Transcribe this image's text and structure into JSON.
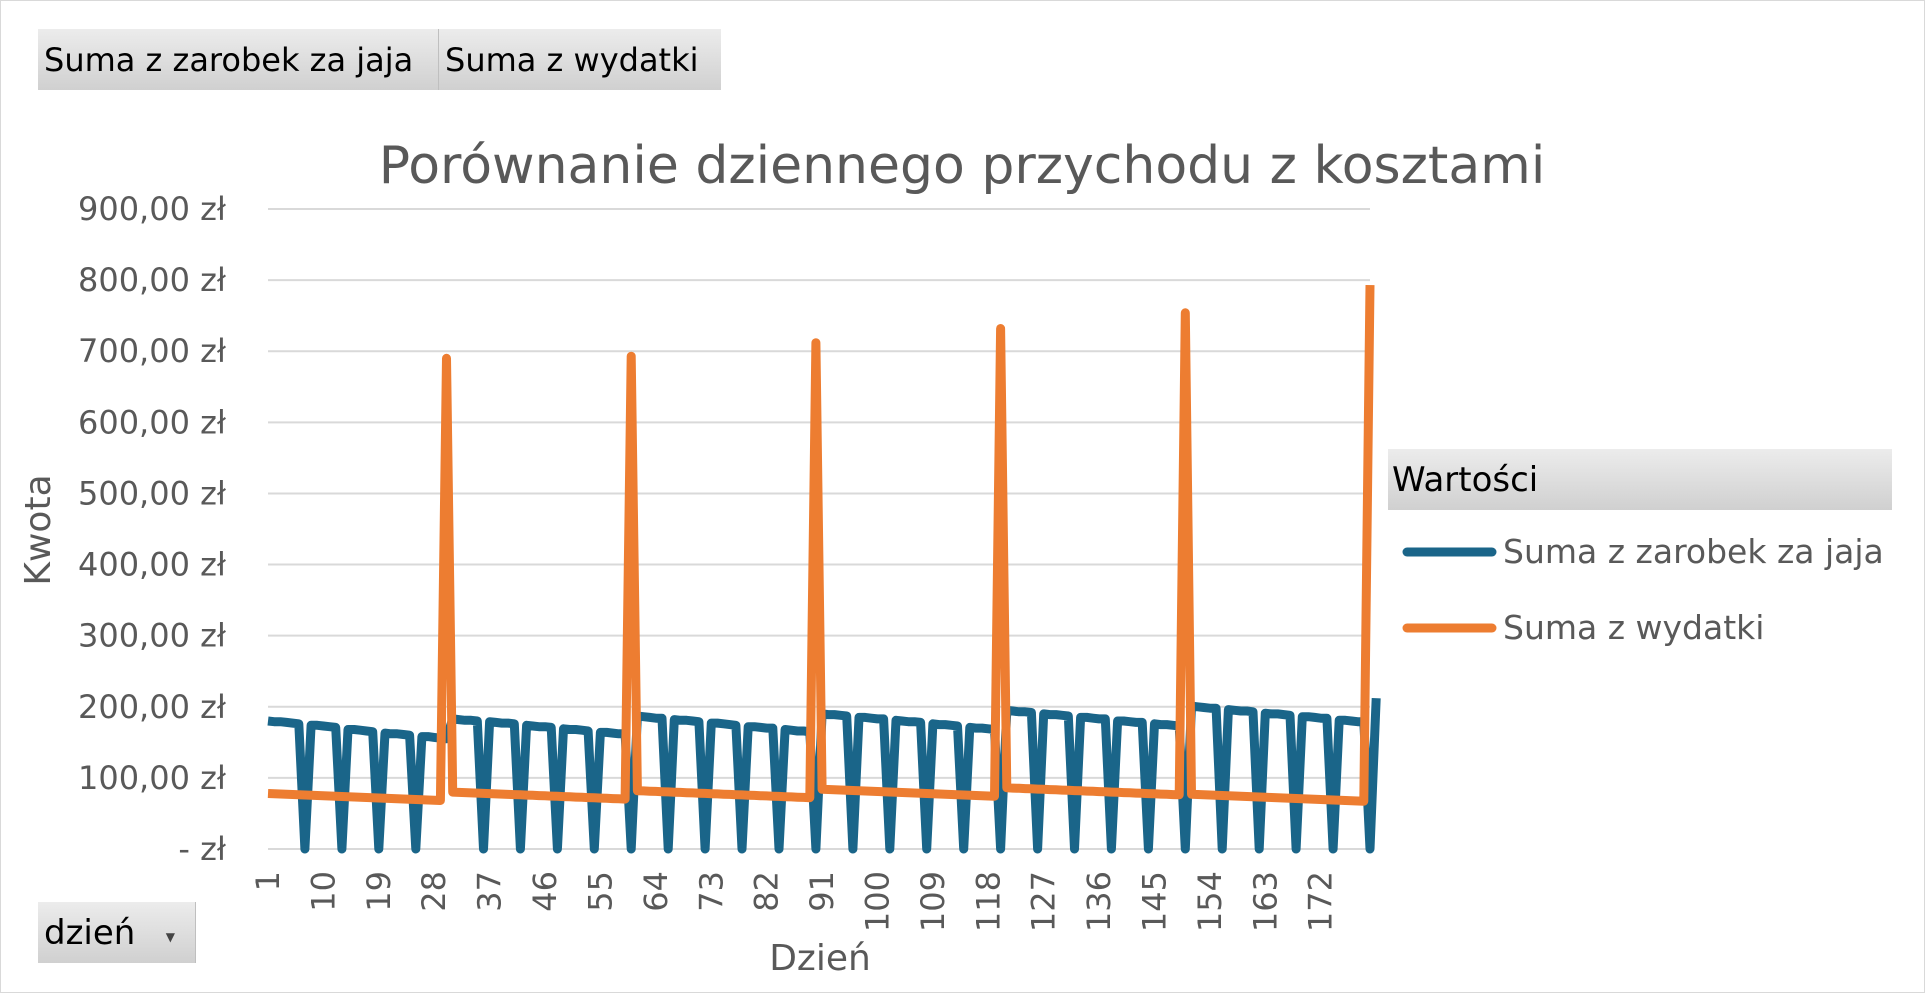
{
  "fields": {
    "value_field_1": "Suma z zarobek za jaja",
    "value_field_2": "Suma z wydatki",
    "legend_header": "Wartości",
    "row_field": "dzień"
  },
  "chart_data": {
    "type": "line",
    "title": "Porównanie dziennego przychodu z kosztami",
    "xlabel": "Dzień",
    "ylabel": "Kwota",
    "ylim": [
      0,
      900
    ],
    "y_ticks": [
      "-  zł",
      "100,00 zł",
      "200,00 zł",
      "300,00 zł",
      "400,00 zł",
      "500,00 zł",
      "600,00 zł",
      "700,00 zł",
      "800,00 zł",
      "900,00 zł"
    ],
    "x_tick_labels": [
      "1",
      "10",
      "19",
      "28",
      "37",
      "46",
      "55",
      "64",
      "73",
      "82",
      "91",
      "100",
      "109",
      "118",
      "127",
      "136",
      "145",
      "154",
      "163",
      "172"
    ],
    "x_range": [
      1,
      180
    ],
    "grid": true,
    "legend_position": "right",
    "colors": {
      "income": "#1a6589",
      "expenses": "#ed7d31"
    },
    "series": [
      {
        "name": "Suma z zarobek za jaja",
        "values": [
          180,
          179,
          179,
          178,
          177,
          176,
          0,
          174,
          174,
          173,
          172,
          171,
          0,
          168,
          168,
          167,
          166,
          165,
          0,
          163,
          162,
          162,
          161,
          160,
          0,
          158,
          158,
          157,
          156,
          155,
          183,
          182,
          181,
          181,
          180,
          0,
          179,
          178,
          177,
          177,
          176,
          0,
          174,
          173,
          172,
          172,
          171,
          0,
          169,
          168,
          168,
          167,
          166,
          0,
          164,
          164,
          163,
          162,
          162,
          0,
          187,
          186,
          185,
          184,
          184,
          0,
          182,
          181,
          181,
          180,
          179,
          0,
          177,
          177,
          176,
          175,
          174,
          0,
          172,
          172,
          171,
          170,
          170,
          0,
          168,
          167,
          166,
          166,
          165,
          0,
          190,
          189,
          189,
          188,
          187,
          0,
          185,
          185,
          184,
          183,
          183,
          0,
          181,
          180,
          179,
          179,
          178,
          0,
          176,
          175,
          175,
          174,
          173,
          0,
          171,
          170,
          170,
          169,
          168,
          0,
          195,
          194,
          193,
          193,
          192,
          0,
          190,
          189,
          189,
          188,
          187,
          0,
          185,
          185,
          184,
          183,
          183,
          0,
          180,
          180,
          179,
          178,
          178,
          0,
          176,
          175,
          175,
          174,
          173,
          0,
          201,
          200,
          199,
          198,
          198,
          0,
          196,
          195,
          194,
          194,
          193,
          0,
          191,
          190,
          190,
          189,
          188,
          0,
          186,
          186,
          185,
          184,
          184,
          0,
          181,
          181,
          180,
          179,
          179,
          0,
          212
        ],
        "comment_pattern": "weekly zero dips"
      },
      {
        "name": "Suma z wydatki",
        "spikes": {
          "30": 690,
          "60": 693,
          "90": 712,
          "120": 732,
          "150": 754,
          "180": 793
        },
        "baseline_start": 75,
        "baseline_step": -0.3,
        "baseline_reset": [
          78,
          80,
          82,
          84,
          86,
          77
        ]
      }
    ]
  }
}
